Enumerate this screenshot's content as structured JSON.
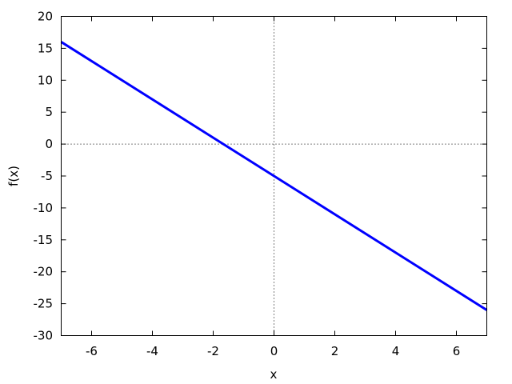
{
  "chart_data": {
    "type": "line",
    "title": "",
    "xlabel": "x",
    "ylabel": "f(x)",
    "xlim": [
      -7,
      7
    ],
    "ylim": [
      -30,
      20
    ],
    "xticks": [
      -6,
      -4,
      -2,
      0,
      2,
      4,
      6
    ],
    "yticks": [
      -30,
      -25,
      -20,
      -15,
      -10,
      -5,
      0,
      5,
      10,
      15,
      20
    ],
    "zero_axes": "dotted",
    "grid": false,
    "series": [
      {
        "color": "#0000ff",
        "x": [
          -7,
          7
        ],
        "y": [
          16,
          -26
        ]
      }
    ]
  }
}
